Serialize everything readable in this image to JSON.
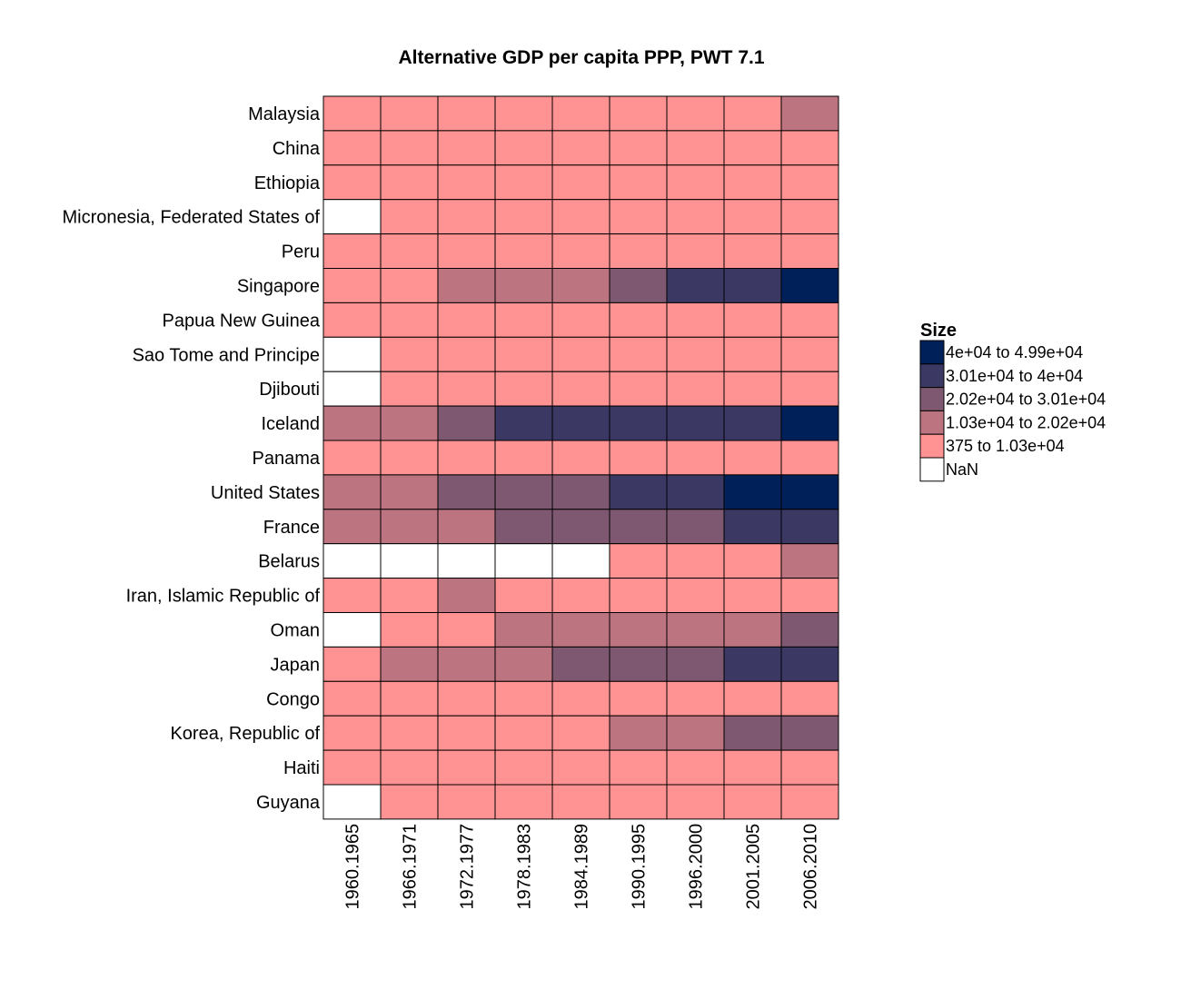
{
  "chart_data": {
    "type": "heatmap",
    "title": "Alternative GDP per capita PPP, PWT 7.1",
    "xlabel": "",
    "ylabel": "",
    "columns": [
      "1960.1965",
      "1966.1971",
      "1972.1977",
      "1978.1983",
      "1984.1989",
      "1990.1995",
      "1996.2000",
      "2001.2005",
      "2006.2010"
    ],
    "rows": [
      "Malaysia",
      "China",
      "Ethiopia",
      "Micronesia, Federated States of",
      "Peru",
      "Singapore",
      "Papua New Guinea",
      "Sao Tome and Principe",
      "Djibouti",
      "Iceland",
      "Panama",
      "United States",
      "France",
      "Belarus",
      "Iran, Islamic Republic of",
      "Oman",
      "Japan",
      "Congo",
      "Korea, Republic of",
      "Haiti",
      "Guyana"
    ],
    "legend": {
      "title": "Size",
      "position": "right",
      "bins": [
        {
          "label": "4e+04 to 4.99e+04",
          "color": "#00205a"
        },
        {
          "label": "3.01e+04 to 4e+04",
          "color": "#3b3864"
        },
        {
          "label": "2.02e+04 to 3.01e+04",
          "color": "#7d5870"
        },
        {
          "label": "1.03e+04 to 2.02e+04",
          "color": "#bc7480"
        },
        {
          "label": "375 to 1.03e+04",
          "color": "#ff9292"
        },
        {
          "label": "NaN",
          "color": "#ffffff"
        }
      ]
    },
    "cells": [
      [
        4,
        4,
        4,
        4,
        4,
        4,
        4,
        4,
        3
      ],
      [
        4,
        4,
        4,
        4,
        4,
        4,
        4,
        4,
        4
      ],
      [
        4,
        4,
        4,
        4,
        4,
        4,
        4,
        4,
        4
      ],
      [
        5,
        4,
        4,
        4,
        4,
        4,
        4,
        4,
        4
      ],
      [
        4,
        4,
        4,
        4,
        4,
        4,
        4,
        4,
        4
      ],
      [
        4,
        4,
        3,
        3,
        3,
        2,
        1,
        1,
        0
      ],
      [
        4,
        4,
        4,
        4,
        4,
        4,
        4,
        4,
        4
      ],
      [
        5,
        4,
        4,
        4,
        4,
        4,
        4,
        4,
        4
      ],
      [
        5,
        4,
        4,
        4,
        4,
        4,
        4,
        4,
        4
      ],
      [
        3,
        3,
        2,
        1,
        1,
        1,
        1,
        1,
        0
      ],
      [
        4,
        4,
        4,
        4,
        4,
        4,
        4,
        4,
        4
      ],
      [
        3,
        3,
        2,
        2,
        2,
        1,
        1,
        0,
        0
      ],
      [
        3,
        3,
        3,
        2,
        2,
        2,
        2,
        1,
        1
      ],
      [
        5,
        5,
        5,
        5,
        5,
        4,
        4,
        4,
        3
      ],
      [
        4,
        4,
        3,
        4,
        4,
        4,
        4,
        4,
        4
      ],
      [
        5,
        4,
        4,
        3,
        3,
        3,
        3,
        3,
        2
      ],
      [
        4,
        3,
        3,
        3,
        2,
        2,
        2,
        1,
        1
      ],
      [
        4,
        4,
        4,
        4,
        4,
        4,
        4,
        4,
        4
      ],
      [
        4,
        4,
        4,
        4,
        4,
        3,
        3,
        2,
        2
      ],
      [
        4,
        4,
        4,
        4,
        4,
        4,
        4,
        4,
        4
      ],
      [
        5,
        4,
        4,
        4,
        4,
        4,
        4,
        4,
        4
      ]
    ]
  }
}
